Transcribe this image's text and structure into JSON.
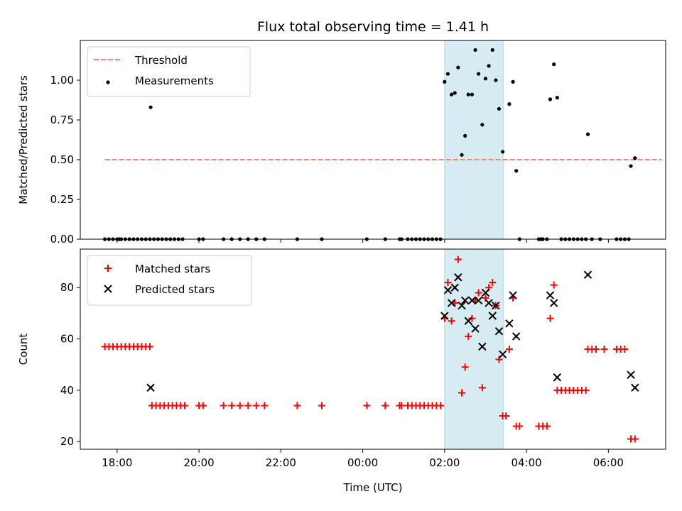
{
  "chart_data": [
    {
      "type": "scatter",
      "title": "Flux total observing time = 1.41 h",
      "xlabel": "",
      "ylabel": "Matched/Predicted stars",
      "xlim": [
        -0.9,
        13.4
      ],
      "ylim": [
        0,
        1.25
      ],
      "yticks": [
        0.0,
        0.25,
        0.5,
        0.75,
        1.0
      ],
      "ytick_labels": [
        "0.00",
        "0.25",
        "0.50",
        "0.75",
        "1.00"
      ],
      "highlight_span": {
        "x": [
          8.0,
          9.43
        ],
        "color": "#add8e6"
      },
      "legend_position": "upper-left",
      "threshold": {
        "name": "Threshold",
        "y": 0.5,
        "x": [
          -0.3,
          13.3
        ],
        "color": "#ff7f7f"
      },
      "series": [
        {
          "name": "Measurements",
          "color": "#000000",
          "points": [
            [
              -0.3,
              0
            ],
            [
              -0.2,
              0
            ],
            [
              -0.1,
              0
            ],
            [
              0.0,
              0
            ],
            [
              0.05,
              0
            ],
            [
              0.1,
              0
            ],
            [
              0.2,
              0
            ],
            [
              0.3,
              0
            ],
            [
              0.4,
              0
            ],
            [
              0.5,
              0
            ],
            [
              0.6,
              0
            ],
            [
              0.7,
              0
            ],
            [
              0.8,
              0
            ],
            [
              0.82,
              0.83
            ],
            [
              0.9,
              0
            ],
            [
              1.0,
              0
            ],
            [
              1.1,
              0
            ],
            [
              1.2,
              0
            ],
            [
              1.3,
              0
            ],
            [
              1.4,
              0
            ],
            [
              1.5,
              0
            ],
            [
              1.6,
              0
            ],
            [
              2.0,
              0
            ],
            [
              2.1,
              0
            ],
            [
              2.6,
              0
            ],
            [
              2.8,
              0
            ],
            [
              3.0,
              0
            ],
            [
              3.2,
              0
            ],
            [
              3.4,
              0
            ],
            [
              3.6,
              0
            ],
            [
              4.4,
              0
            ],
            [
              5.0,
              0
            ],
            [
              6.1,
              0
            ],
            [
              6.55,
              0
            ],
            [
              6.9,
              0
            ],
            [
              6.95,
              0
            ],
            [
              7.1,
              0
            ],
            [
              7.2,
              0
            ],
            [
              7.3,
              0
            ],
            [
              7.4,
              0
            ],
            [
              7.5,
              0
            ],
            [
              7.6,
              0
            ],
            [
              7.7,
              0
            ],
            [
              7.8,
              0
            ],
            [
              7.9,
              0
            ],
            [
              8.0,
              0.99
            ],
            [
              8.08,
              1.04
            ],
            [
              8.17,
              0.91
            ],
            [
              8.25,
              0.92
            ],
            [
              8.33,
              1.08
            ],
            [
              8.42,
              0.53
            ],
            [
              8.5,
              0.65
            ],
            [
              8.58,
              0.91
            ],
            [
              8.67,
              0.91
            ],
            [
              8.75,
              1.19
            ],
            [
              8.83,
              1.04
            ],
            [
              8.92,
              0.72
            ],
            [
              9.0,
              1.01
            ],
            [
              9.08,
              1.09
            ],
            [
              9.17,
              1.19
            ],
            [
              9.25,
              1.0
            ],
            [
              9.33,
              0.82
            ],
            [
              9.42,
              0.55
            ],
            [
              9.58,
              0.85
            ],
            [
              9.67,
              0.99
            ],
            [
              9.75,
              0.43
            ],
            [
              9.83,
              0
            ],
            [
              10.3,
              0
            ],
            [
              10.35,
              0.0
            ],
            [
              10.4,
              0
            ],
            [
              10.5,
              0
            ],
            [
              10.58,
              0.88
            ],
            [
              10.67,
              1.1
            ],
            [
              10.75,
              0.89
            ],
            [
              10.85,
              0
            ],
            [
              10.95,
              0
            ],
            [
              11.05,
              0
            ],
            [
              11.15,
              0
            ],
            [
              11.25,
              0
            ],
            [
              11.35,
              0
            ],
            [
              11.45,
              0
            ],
            [
              11.5,
              0.66
            ],
            [
              11.6,
              0
            ],
            [
              11.8,
              0
            ],
            [
              12.2,
              0
            ],
            [
              12.3,
              0
            ],
            [
              12.4,
              0
            ],
            [
              12.5,
              0
            ],
            [
              12.55,
              0.46
            ],
            [
              12.65,
              0.51
            ]
          ]
        }
      ]
    },
    {
      "type": "scatter",
      "title": "",
      "xlabel": "Time (UTC)",
      "ylabel": "Count",
      "xlim": [
        -0.9,
        13.4
      ],
      "ylim": [
        17,
        95
      ],
      "yticks": [
        20,
        40,
        60,
        80
      ],
      "ytick_labels": [
        "20",
        "40",
        "60",
        "80"
      ],
      "xticks": [
        0,
        2,
        4,
        6,
        8,
        10,
        12
      ],
      "xtick_labels": [
        "18:00",
        "20:00",
        "22:00",
        "00:00",
        "02:00",
        "04:00",
        "06:00"
      ],
      "highlight_span": {
        "x": [
          8.0,
          9.43
        ],
        "color": "#add8e6"
      },
      "legend_position": "upper-left",
      "series": [
        {
          "name": "Matched stars",
          "marker": "plus",
          "color": "#ff0000",
          "points": [
            [
              -0.3,
              57
            ],
            [
              -0.2,
              57
            ],
            [
              -0.1,
              57
            ],
            [
              0.0,
              57
            ],
            [
              0.1,
              57
            ],
            [
              0.2,
              57
            ],
            [
              0.3,
              57
            ],
            [
              0.4,
              57
            ],
            [
              0.5,
              57
            ],
            [
              0.6,
              57
            ],
            [
              0.7,
              57
            ],
            [
              0.8,
              57
            ],
            [
              0.85,
              34
            ],
            [
              0.95,
              34
            ],
            [
              1.05,
              34
            ],
            [
              1.15,
              34
            ],
            [
              1.25,
              34
            ],
            [
              1.35,
              34
            ],
            [
              1.45,
              34
            ],
            [
              1.55,
              34
            ],
            [
              1.65,
              34
            ],
            [
              2.0,
              34
            ],
            [
              2.1,
              34
            ],
            [
              2.6,
              34
            ],
            [
              2.8,
              34
            ],
            [
              3.0,
              34
            ],
            [
              3.2,
              34
            ],
            [
              3.4,
              34
            ],
            [
              3.6,
              34
            ],
            [
              4.4,
              34
            ],
            [
              5.0,
              34
            ],
            [
              6.1,
              34
            ],
            [
              6.55,
              34
            ],
            [
              6.9,
              34
            ],
            [
              6.95,
              34
            ],
            [
              7.1,
              34
            ],
            [
              7.2,
              34
            ],
            [
              7.3,
              34
            ],
            [
              7.4,
              34
            ],
            [
              7.5,
              34
            ],
            [
              7.6,
              34
            ],
            [
              7.7,
              34
            ],
            [
              7.8,
              34
            ],
            [
              7.9,
              34
            ],
            [
              8.0,
              68
            ],
            [
              8.08,
              82
            ],
            [
              8.17,
              67
            ],
            [
              8.25,
              74
            ],
            [
              8.33,
              91
            ],
            [
              8.42,
              39
            ],
            [
              8.5,
              49
            ],
            [
              8.58,
              61
            ],
            [
              8.67,
              68
            ],
            [
              8.75,
              75
            ],
            [
              8.83,
              78
            ],
            [
              8.92,
              41
            ],
            [
              9.0,
              76
            ],
            [
              9.08,
              80
            ],
            [
              9.17,
              82
            ],
            [
              9.25,
              73
            ],
            [
              9.33,
              52
            ],
            [
              9.42,
              30
            ],
            [
              9.5,
              30
            ],
            [
              9.58,
              56
            ],
            [
              9.67,
              76
            ],
            [
              9.75,
              26
            ],
            [
              9.83,
              26
            ],
            [
              10.3,
              26
            ],
            [
              10.4,
              26
            ],
            [
              10.5,
              26
            ],
            [
              10.58,
              68
            ],
            [
              10.67,
              81
            ],
            [
              10.75,
              40
            ],
            [
              10.85,
              40
            ],
            [
              10.95,
              40
            ],
            [
              11.05,
              40
            ],
            [
              11.15,
              40
            ],
            [
              11.25,
              40
            ],
            [
              11.35,
              40
            ],
            [
              11.45,
              40
            ],
            [
              11.5,
              56
            ],
            [
              11.6,
              56
            ],
            [
              11.7,
              56
            ],
            [
              11.9,
              56
            ],
            [
              12.2,
              56
            ],
            [
              12.3,
              56
            ],
            [
              12.4,
              56
            ],
            [
              12.55,
              21
            ],
            [
              12.65,
              21
            ]
          ]
        },
        {
          "name": "Predicted stars",
          "marker": "x",
          "color": "#000000",
          "points": [
            [
              0.82,
              41
            ],
            [
              8.0,
              69
            ],
            [
              8.08,
              79
            ],
            [
              8.17,
              74
            ],
            [
              8.25,
              80
            ],
            [
              8.33,
              84
            ],
            [
              8.42,
              73
            ],
            [
              8.5,
              75
            ],
            [
              8.58,
              67
            ],
            [
              8.67,
              75
            ],
            [
              8.75,
              64
            ],
            [
              8.83,
              75
            ],
            [
              8.92,
              57
            ],
            [
              9.0,
              78
            ],
            [
              9.08,
              74
            ],
            [
              9.17,
              69
            ],
            [
              9.25,
              73
            ],
            [
              9.33,
              63
            ],
            [
              9.42,
              54
            ],
            [
              9.58,
              66
            ],
            [
              9.67,
              77
            ],
            [
              9.75,
              61
            ],
            [
              10.58,
              77
            ],
            [
              10.67,
              74
            ],
            [
              10.75,
              45
            ],
            [
              11.5,
              85
            ],
            [
              12.55,
              46
            ],
            [
              12.65,
              41
            ]
          ]
        }
      ]
    }
  ]
}
